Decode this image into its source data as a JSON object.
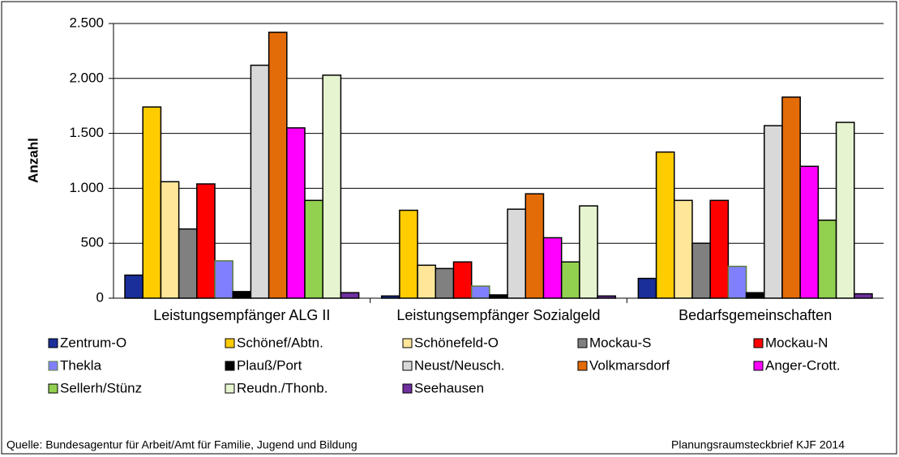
{
  "chart_data": {
    "type": "bar",
    "y_label": "Anzahl",
    "categories": [
      "Leistungsempfänger ALG II",
      "Leistungsempfänger Sozialgeld",
      "Bedarfsgemeinschaften"
    ],
    "series": [
      {
        "name": "Zentrum-O",
        "color": "#1a2f99",
        "values": [
          210,
          20,
          180
        ]
      },
      {
        "name": "Schönef/Abtn.",
        "color": "#ffcc00",
        "values": [
          1740,
          800,
          1330
        ]
      },
      {
        "name": "Schönefeld-O",
        "color": "#ffe699",
        "values": [
          1060,
          300,
          890
        ]
      },
      {
        "name": "Mockau-S",
        "color": "#808080",
        "values": [
          630,
          270,
          500
        ]
      },
      {
        "name": "Mockau-N",
        "color": "#ff0000",
        "values": [
          1040,
          330,
          890
        ]
      },
      {
        "name": "Thekla",
        "color": "#8080ff",
        "values": [
          340,
          110,
          290
        ]
      },
      {
        "name": "Plauß/Port",
        "color": "#000000",
        "values": [
          60,
          30,
          50
        ]
      },
      {
        "name": "Neust/Neusch.",
        "color": "#d9d9d9",
        "values": [
          2120,
          810,
          1570
        ]
      },
      {
        "name": "Volkmarsdorf",
        "color": "#e36c09",
        "values": [
          2420,
          950,
          1830
        ]
      },
      {
        "name": "Anger-Crott.",
        "color": "#ff00ff",
        "values": [
          1550,
          550,
          1200
        ]
      },
      {
        "name": "Sellerh/Stünz",
        "color": "#92d050",
        "values": [
          890,
          330,
          710
        ]
      },
      {
        "name": "Reudn./Thonb.",
        "color": "#e6f5d0",
        "values": [
          2030,
          840,
          1600
        ]
      },
      {
        "name": "Seehausen",
        "color": "#7030a0",
        "values": [
          50,
          20,
          40
        ]
      }
    ],
    "ylim": [
      0,
      2500
    ],
    "yticks": [
      0,
      500,
      {
        "value": 1000,
        "label": "1.000"
      },
      {
        "value": 1500,
        "label": "1.500"
      },
      {
        "value": 2000,
        "label": "2.000"
      },
      {
        "value": 2500,
        "label": "2.500"
      }
    ],
    "grid": true,
    "source": "Quelle: Bundesagentur für Arbeit/Amt für Familie, Jugend und Bildung",
    "footer_right": "Planungsraumsteckbrief KJF 2014"
  }
}
